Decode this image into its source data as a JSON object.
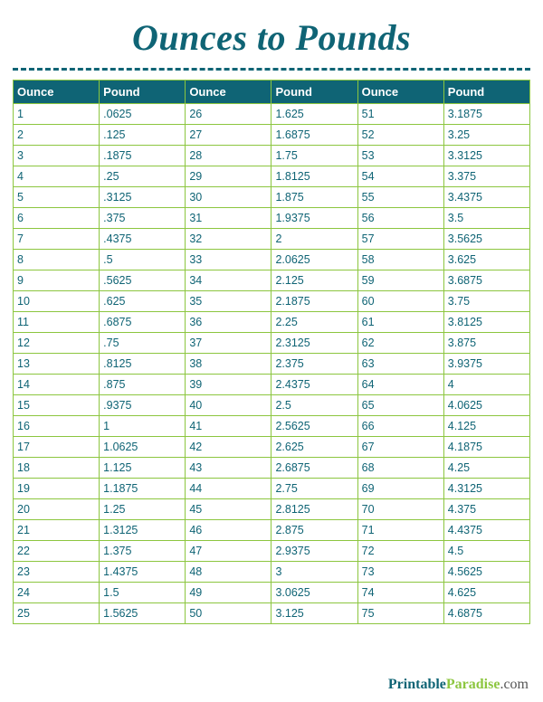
{
  "title": "Ounces to Pounds",
  "colors": {
    "title": "#0f6475",
    "divider": "#0f6475",
    "header_bg": "#0f6475",
    "header_text": "#ffffff",
    "cell_border": "#8cc63f",
    "cell_text": "#0f6475",
    "footer_brand_a": "#0f6475",
    "footer_brand_b": "#8cc63f",
    "footer_brand_c": "#555555"
  },
  "table": {
    "column_pairs": 3,
    "headers": [
      "Ounce",
      "Pound",
      "Ounce",
      "Pound",
      "Ounce",
      "Pound"
    ],
    "rows": [
      [
        "1",
        ".0625",
        "26",
        "1.625",
        "51",
        "3.1875"
      ],
      [
        "2",
        ".125",
        "27",
        "1.6875",
        "52",
        "3.25"
      ],
      [
        "3",
        ".1875",
        "28",
        "1.75",
        "53",
        "3.3125"
      ],
      [
        "4",
        ".25",
        "29",
        "1.8125",
        "54",
        "3.375"
      ],
      [
        "5",
        ".3125",
        "30",
        "1.875",
        "55",
        "3.4375"
      ],
      [
        "6",
        ".375",
        "31",
        "1.9375",
        "56",
        "3.5"
      ],
      [
        "7",
        ".4375",
        "32",
        "2",
        "57",
        "3.5625"
      ],
      [
        "8",
        ".5",
        "33",
        "2.0625",
        "58",
        "3.625"
      ],
      [
        "9",
        ".5625",
        "34",
        "2.125",
        "59",
        "3.6875"
      ],
      [
        "10",
        ".625",
        "35",
        "2.1875",
        "60",
        "3.75"
      ],
      [
        "11",
        ".6875",
        "36",
        "2.25",
        "61",
        "3.8125"
      ],
      [
        "12",
        ".75",
        "37",
        "2.3125",
        "62",
        "3.875"
      ],
      [
        "13",
        ".8125",
        "38",
        "2.375",
        "63",
        "3.9375"
      ],
      [
        "14",
        ".875",
        "39",
        "2.4375",
        "64",
        "4"
      ],
      [
        "15",
        ".9375",
        "40",
        "2.5",
        "65",
        "4.0625"
      ],
      [
        "16",
        "1",
        "41",
        "2.5625",
        "66",
        "4.125"
      ],
      [
        "17",
        "1.0625",
        "42",
        "2.625",
        "67",
        "4.1875"
      ],
      [
        "18",
        "1.125",
        "43",
        "2.6875",
        "68",
        "4.25"
      ],
      [
        "19",
        "1.1875",
        "44",
        "2.75",
        "69",
        "4.3125"
      ],
      [
        "20",
        "1.25",
        "45",
        "2.8125",
        "70",
        "4.375"
      ],
      [
        "21",
        "1.3125",
        "46",
        "2.875",
        "71",
        "4.4375"
      ],
      [
        "22",
        "1.375",
        "47",
        "2.9375",
        "72",
        "4.5"
      ],
      [
        "23",
        "1.4375",
        "48",
        "3",
        "73",
        "4.5625"
      ],
      [
        "24",
        "1.5",
        "49",
        "3.0625",
        "74",
        "4.625"
      ],
      [
        "25",
        "1.5625",
        "50",
        "3.125",
        "75",
        "4.6875"
      ]
    ]
  },
  "footer": {
    "part_a": "Printable",
    "part_b": "Paradise",
    "part_c": ".com"
  }
}
